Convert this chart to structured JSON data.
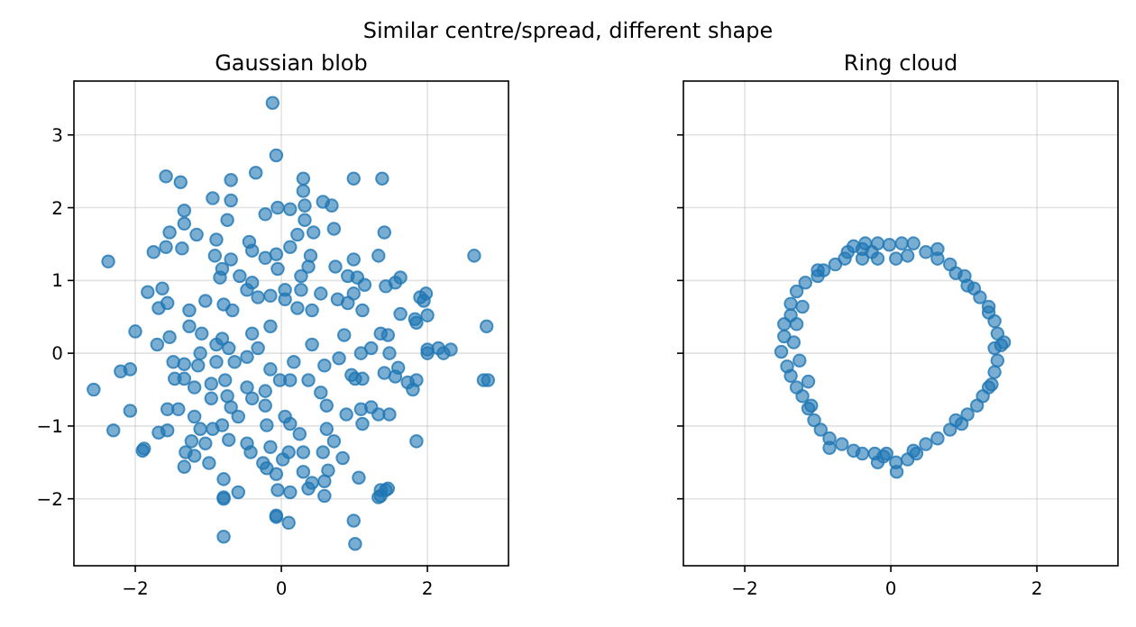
{
  "chart_data": [
    {
      "type": "scatter",
      "title": "Gaussian blob",
      "annotations": [
        "Similar centre/spread, different shape"
      ],
      "color": "#1f77b4",
      "marker": "circle",
      "grid": true,
      "xlim": [
        -2.84,
        3.11
      ],
      "ylim": [
        -2.92,
        3.74
      ],
      "xticks": [
        -2,
        0,
        2
      ],
      "yticks": [
        -2,
        -1,
        0,
        1,
        2,
        3
      ],
      "x": [
        -0.12,
        -0.07,
        -1.58,
        -1.38,
        0.3,
        1.38,
        -2.37,
        2.64,
        -2.57,
        -2.3,
        2.81,
        2.83,
        2.77,
        1.01,
        -0.07,
        1.36,
        1.43,
        -0.79,
        -0.79,
        -1.88,
        -1.23,
        1.9,
        2.0,
        2.0,
        1.85,
        2.15,
        1.98,
        0.99,
        -0.69,
        -0.35,
        -0.94,
        -0.69,
        -1.33,
        -0.22,
        -0.05,
        -1.33,
        -0.74,
        -1.53,
        -1.16,
        -0.89,
        -0.44,
        -1.58,
        -1.75,
        -1.36,
        -0.91,
        -0.69,
        -0.4,
        -0.22,
        -0.07,
        -0.05,
        -0.81,
        -0.84,
        -0.57,
        -0.4,
        -1.83,
        -1.63,
        -1.56,
        -1.68,
        -1.26,
        -1.04,
        -0.79,
        -0.47,
        -0.32,
        -0.15,
        0.05,
        -0.67,
        0.99,
        0.3,
        0.12,
        0.32,
        0.57,
        0.69,
        0.32,
        0.72,
        0.22,
        0.44,
        1.41,
        0.12,
        0.4,
        1.33,
        0.99,
        0.37,
        0.74,
        0.27,
        0.91,
        1.04,
        1.63,
        1.56,
        1.43,
        1.14,
        0.27,
        0.54,
        0.77,
        0.99,
        1.95,
        0.05,
        0.22,
        0.42,
        0.91,
        1.11,
        1.63,
        1.83,
        -2.0,
        -1.7,
        -1.53,
        -1.26,
        -1.11,
        -0.89,
        -2.2,
        -2.07,
        -2.07,
        -1.9,
        -1.68,
        -1.56,
        -1.56,
        -1.41,
        -1.48,
        -1.33,
        -1.46,
        -1.33,
        -1.14,
        -1.19,
        -0.96,
        -1.19,
        -1.11,
        -0.94,
        -1.31,
        -1.33,
        -1.19,
        -0.99,
        -1.04,
        -0.81,
        -0.74,
        -0.69,
        -0.59,
        -0.72,
        -0.47,
        -0.79,
        -0.79,
        -0.59,
        -0.42,
        -0.15,
        -0.25,
        -0.2,
        -0.07,
        -0.05,
        -0.07,
        0.1,
        -0.4,
        -0.22,
        -0.2,
        0.02,
        -0.89,
        -0.64,
        -0.47,
        -0.32,
        -0.72,
        -1.09,
        -0.81,
        -0.4,
        -0.15,
        -0.02,
        -0.22,
        -0.47,
        -0.96,
        -0.77,
        -0.15,
        0.05,
        2.0,
        2.22,
        2.32,
        1.85,
        1.73,
        1.8,
        1.6,
        1.56,
        1.41,
        1.48,
        1.23,
        1.09,
        0.96,
        1.11,
        1.01,
        0.79,
        0.59,
        0.42,
        0.17,
        0.12,
        0.37,
        0.54,
        0.86,
        1.46,
        1.36,
        0.62,
        0.89,
        1.09,
        1.23,
        1.33,
        1.48,
        1.11,
        1.85,
        0.62,
        0.72,
        0.57,
        0.25,
        0.12,
        0.1,
        0.3,
        0.84,
        0.3,
        0.64,
        0.42,
        0.59,
        0.37,
        0.59,
        0.12,
        1.06,
        1.33,
        1.46,
        1.36
      ],
      "values": [
        3.44,
        2.72,
        2.43,
        2.35,
        2.4,
        2.4,
        1.26,
        1.34,
        -0.5,
        -1.06,
        0.37,
        -0.37,
        -0.37,
        -2.62,
        -2.25,
        -1.96,
        -1.88,
        -1.98,
        -2.52,
        -1.31,
        -1.21,
        0.77,
        0.52,
        0.0,
        -0.37,
        0.07,
        0.82,
        -2.3,
        2.38,
        2.48,
        2.13,
        2.1,
        1.96,
        1.91,
        2.0,
        1.78,
        1.83,
        1.66,
        1.63,
        1.56,
        1.53,
        1.46,
        1.39,
        1.44,
        1.34,
        1.29,
        1.41,
        1.31,
        1.36,
        1.16,
        1.16,
        1.04,
        1.06,
        0.97,
        0.84,
        0.89,
        0.69,
        0.62,
        0.59,
        0.72,
        0.67,
        0.87,
        0.77,
        0.79,
        0.87,
        0.59,
        2.4,
        2.23,
        1.98,
        2.03,
        2.08,
        2.03,
        1.83,
        1.71,
        1.63,
        1.66,
        1.66,
        1.46,
        1.34,
        1.34,
        1.29,
        1.19,
        1.19,
        1.06,
        1.06,
        1.04,
        1.04,
        0.97,
        0.92,
        0.94,
        0.87,
        0.82,
        0.74,
        0.82,
        0.72,
        0.74,
        0.62,
        0.59,
        0.69,
        0.59,
        0.54,
        0.47,
        0.3,
        0.12,
        0.22,
        0.37,
        0.0,
        0.12,
        -0.25,
        -0.22,
        -0.79,
        -1.34,
        -1.09,
        -1.06,
        -0.77,
        -0.77,
        -0.12,
        -0.15,
        -0.35,
        -0.35,
        -0.17,
        -0.47,
        -0.42,
        -0.87,
        -1.04,
        -1.04,
        -1.36,
        -1.56,
        -1.41,
        -1.51,
        -1.24,
        -0.99,
        -0.59,
        -0.74,
        -0.87,
        -1.19,
        -1.24,
        -1.73,
        -2.0,
        -1.91,
        -1.36,
        -1.29,
        -1.51,
        -1.58,
        -1.66,
        -1.88,
        -2.23,
        -2.33,
        -0.62,
        -0.72,
        -0.99,
        -1.46,
        -0.12,
        -0.12,
        -0.05,
        0.07,
        0.07,
        0.27,
        0.2,
        0.27,
        0.37,
        -0.37,
        -0.52,
        -0.47,
        -0.62,
        -0.37,
        -0.22,
        -0.87,
        0.05,
        0.0,
        0.05,
        0.42,
        -0.4,
        -0.5,
        -0.2,
        -0.32,
        -0.27,
        0.0,
        0.07,
        0.0,
        -0.3,
        -0.35,
        -0.35,
        -0.07,
        -0.17,
        0.12,
        -0.12,
        -0.37,
        -0.37,
        -0.54,
        0.25,
        0.25,
        0.27,
        -0.72,
        -0.84,
        -0.77,
        -0.74,
        -0.84,
        -0.84,
        -0.97,
        -1.21,
        -1.04,
        -1.21,
        -1.36,
        -1.11,
        -0.97,
        -1.36,
        -1.36,
        -1.44,
        -1.63,
        -1.61,
        -1.78,
        -1.76,
        -1.86,
        -1.96,
        -1.91,
        -1.71,
        -1.98,
        -1.86,
        -1.88
      ]
    },
    {
      "type": "scatter",
      "title": "Ring cloud",
      "color": "#1f77b4",
      "marker": "circle",
      "grid": true,
      "tick_labels": "x",
      "xlim": [
        -2.84,
        3.11
      ],
      "ylim": [
        -2.92,
        3.74
      ],
      "xticks": [
        -2,
        0,
        2
      ],
      "yticks": [
        -2,
        -1,
        0,
        1,
        2,
        3
      ],
      "x": [
        -0.51,
        -0.35,
        -0.18,
        -0.02,
        0.15,
        0.31,
        -0.39,
        -0.18,
        0.07,
        0.23,
        0.48,
        0.64,
        0.81,
        0.89,
        1.01,
        1.14,
        1.22,
        1.34,
        1.42,
        1.46,
        1.51,
        1.46,
        1.42,
        1.38,
        1.26,
        1.18,
        1.05,
        0.97,
        0.81,
        0.64,
        0.48,
        0.35,
        0.23,
        0.07,
        0.08,
        -0.1,
        -0.22,
        -0.39,
        -0.51,
        -0.67,
        -0.84,
        -0.96,
        -1.05,
        -1.13,
        -1.21,
        -1.29,
        -1.37,
        -1.42,
        -1.5,
        -1.46,
        -1.46,
        -1.37,
        -1.37,
        -1.29,
        -1.17,
        -1.0,
        -0.92,
        -0.76,
        -0.63,
        -0.59,
        -0.39,
        -1.21,
        -1.33,
        -1.25,
        -1.13,
        -0.84,
        -0.06,
        0.31,
        0.89,
        1.34,
        1.42,
        1.55,
        1.34,
        1.05,
        0.64,
        -0.26,
        -1.0,
        -1.29,
        -1.09,
        -0.18
      ],
      "values": [
        1.47,
        1.51,
        1.51,
        1.49,
        1.51,
        1.51,
        1.3,
        1.3,
        1.3,
        1.34,
        1.39,
        1.3,
        1.22,
        1.1,
        1.06,
        0.89,
        0.77,
        0.56,
        0.44,
        0.27,
        0.11,
        -0.1,
        -0.26,
        -0.43,
        -0.59,
        -0.72,
        -0.84,
        -0.97,
        -1.05,
        -1.17,
        -1.25,
        -1.38,
        -1.46,
        -1.5,
        -1.63,
        -1.42,
        -1.38,
        -1.38,
        -1.34,
        -1.25,
        -1.17,
        -1.05,
        -0.92,
        -0.76,
        -0.59,
        -0.47,
        -0.31,
        -0.18,
        0.02,
        0.23,
        0.4,
        0.52,
        0.68,
        0.85,
        0.97,
        1.14,
        1.14,
        1.22,
        1.3,
        1.39,
        1.43,
        0.64,
        0.15,
        -0.1,
        -0.39,
        -1.3,
        -1.38,
        -1.34,
        -0.92,
        -0.47,
        0.07,
        0.15,
        0.64,
        0.93,
        1.43,
        1.39,
        1.06,
        0.4,
        -0.72,
        -1.5
      ]
    }
  ]
}
